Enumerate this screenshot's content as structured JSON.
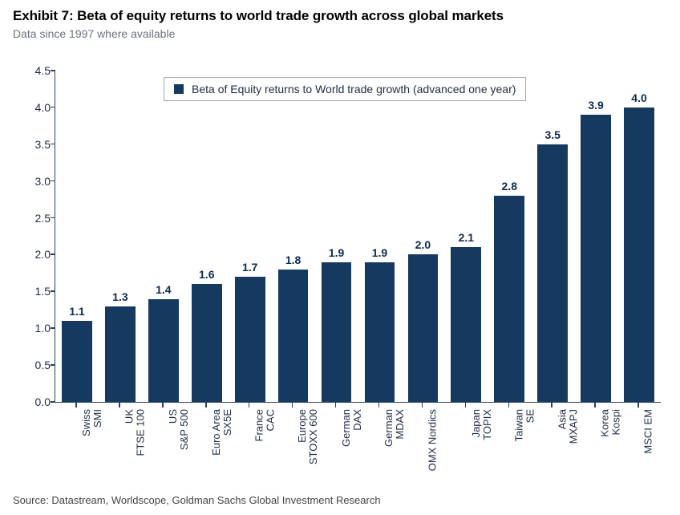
{
  "title": "Exhibit 7: Beta of equity returns to world trade growth across global markets",
  "subtitle": "Data since 1997 where available",
  "source": "Source: Datastream, Worldscope, Goldman Sachs Global Investment Research",
  "chart": {
    "type": "bar",
    "legend_label": "Beta of Equity returns to World trade growth (advanced one year)",
    "bar_color": "#163a5f",
    "axis_color": "#274268",
    "background_color": "#ffffff",
    "value_font_size": 14,
    "value_font_weight": "bold",
    "label_font_size": 13,
    "ylim": [
      0.0,
      4.5
    ],
    "ytick_step": 0.5,
    "yticks": [
      "0.0",
      "0.5",
      "1.0",
      "1.5",
      "2.0",
      "2.5",
      "3.0",
      "3.5",
      "4.0",
      "4.5"
    ],
    "bar_width_ratio": 0.7,
    "categories": [
      "Swiss\nSMI",
      "UK\nFTSE 100",
      "US\nS&P 500",
      "Euro Area\nSX5E",
      "France\nCAC",
      "Europe\nSTOXX 600",
      "German\nDAX",
      "German\nMDAX",
      "OMX Nordics",
      "Japan\nTOPIX",
      "Taiwan\nSE",
      "Asia\nMXAPJ",
      "Korea\nKospi",
      "MSCI EM"
    ],
    "values": [
      1.1,
      1.3,
      1.4,
      1.6,
      1.7,
      1.8,
      1.9,
      1.9,
      2.0,
      2.1,
      2.8,
      3.5,
      3.9,
      4.0
    ],
    "value_labels": [
      "1.1",
      "1.3",
      "1.4",
      "1.6",
      "1.7",
      "1.8",
      "1.9",
      "1.9",
      "2.0",
      "2.1",
      "2.8",
      "3.5",
      "3.9",
      "4.0"
    ]
  }
}
